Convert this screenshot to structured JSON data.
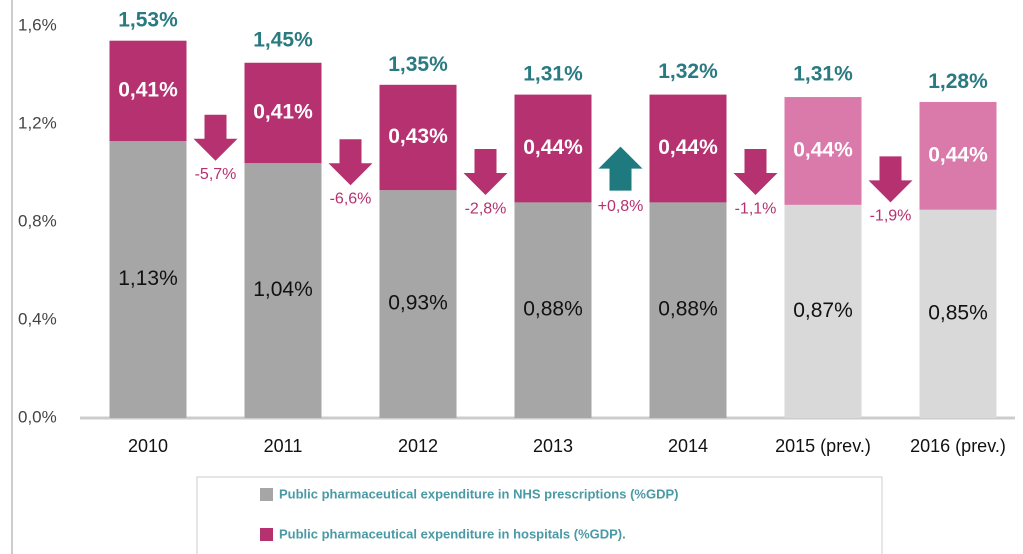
{
  "chart_data": {
    "type": "stacked_bar",
    "categories": [
      "2010",
      "2011",
      "2012",
      "2013",
      "2014",
      "2015 (prev.)",
      "2016 (prev.)"
    ],
    "series": [
      {
        "name": "Public pharmaceutical expenditure in NHS prescriptions (%GDP)",
        "colors": [
          "#a6a6a6",
          "#a6a6a6",
          "#a6a6a6",
          "#a6a6a6",
          "#a6a6a6",
          "#d9d9d9",
          "#d9d9d9"
        ],
        "values": [
          1.13,
          1.04,
          0.93,
          0.88,
          0.88,
          0.87,
          0.85
        ],
        "value_labels": [
          "1,13%",
          "1,04%",
          "0,93%",
          "0,88%",
          "0,88%",
          "0,87%",
          "0,85%"
        ]
      },
      {
        "name": "Public pharmaceutical expenditure in hospitals (%GDP).",
        "colors": [
          "#b5316f",
          "#b5316f",
          "#b5316f",
          "#b5316f",
          "#b5316f",
          "#d97aab",
          "#d97aab"
        ],
        "values": [
          0.41,
          0.41,
          0.43,
          0.44,
          0.44,
          0.44,
          0.44
        ],
        "value_labels": [
          "0,41%",
          "0,41%",
          "0,43%",
          "0,44%",
          "0,44%",
          "0,44%",
          "0,44%"
        ]
      }
    ],
    "totals": [
      1.53,
      1.45,
      1.35,
      1.31,
      1.32,
      1.31,
      1.28
    ],
    "total_labels": [
      "1,53%",
      "1,45%",
      "1,35%",
      "1,31%",
      "1,32%",
      "1,31%",
      "1,28%"
    ],
    "changes": [
      -5.7,
      -6.6,
      -2.8,
      0.8,
      -1.1,
      -1.9
    ],
    "change_labels": [
      "-5,7%",
      "-6,6%",
      "-2,8%",
      "+0,8%",
      "-1,1%",
      "-1,9%"
    ],
    "ylim": [
      0,
      1.6
    ],
    "yticks": [
      {
        "value": 0,
        "label": "0,0%"
      },
      {
        "value": 0.4,
        "label": "0,4%"
      },
      {
        "value": 0.8,
        "label": "0,8%"
      },
      {
        "value": 1.2,
        "label": "1,2%"
      },
      {
        "value": 1.6,
        "label": "1,6%"
      }
    ]
  }
}
